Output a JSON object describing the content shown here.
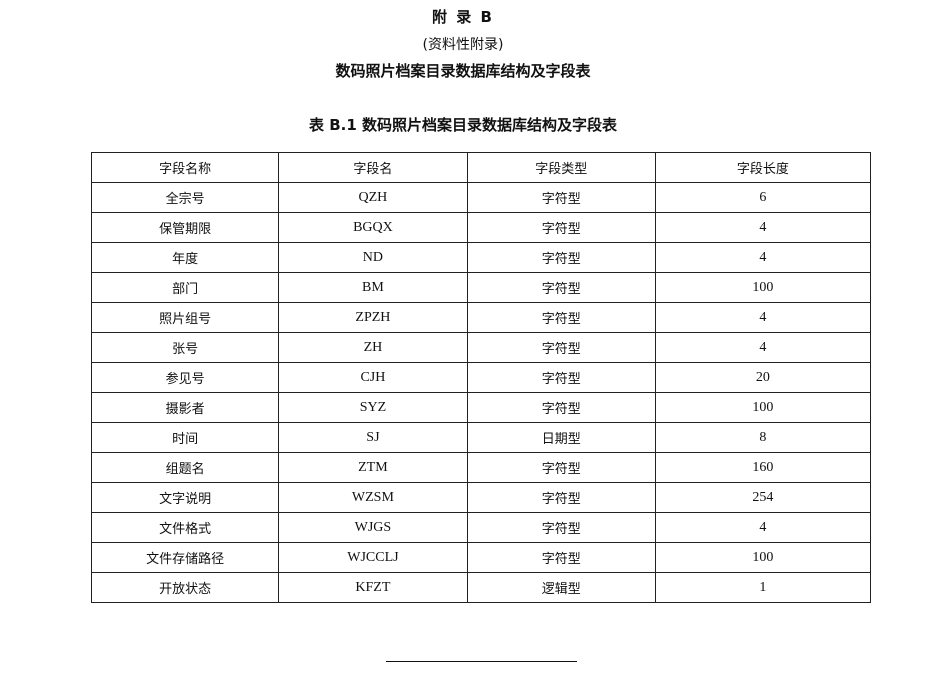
{
  "heading": {
    "appendix": "附 录 B",
    "note": "(资料性附录)",
    "title": "数码照片档案目录数据库结构及字段表",
    "table_caption": "表 B.1   数码照片档案目录数据库结构及字段表"
  },
  "table": {
    "columns": [
      "字段名称",
      "字段名",
      "字段类型",
      "字段长度"
    ],
    "rows": [
      [
        "全宗号",
        "QZH",
        "字符型",
        "6"
      ],
      [
        "保管期限",
        "BGQX",
        "字符型",
        "4"
      ],
      [
        "年度",
        "ND",
        "字符型",
        "4"
      ],
      [
        "部门",
        "BM",
        "字符型",
        "100"
      ],
      [
        "照片组号",
        "ZPZH",
        "字符型",
        "4"
      ],
      [
        "张号",
        "ZH",
        "字符型",
        "4"
      ],
      [
        "参见号",
        "CJH",
        "字符型",
        "20"
      ],
      [
        "摄影者",
        "SYZ",
        "字符型",
        "100"
      ],
      [
        "时间",
        "SJ",
        "日期型",
        "8"
      ],
      [
        "组题名",
        "ZTM",
        "字符型",
        "160"
      ],
      [
        "文字说明",
        "WZSM",
        "字符型",
        "254"
      ],
      [
        "文件格式",
        "WJGS",
        "字符型",
        "4"
      ],
      [
        "文件存储路径",
        "WJCCLJ",
        "字符型",
        "100"
      ],
      [
        "开放状态",
        "KFZT",
        "逻辑型",
        "1"
      ]
    ]
  }
}
